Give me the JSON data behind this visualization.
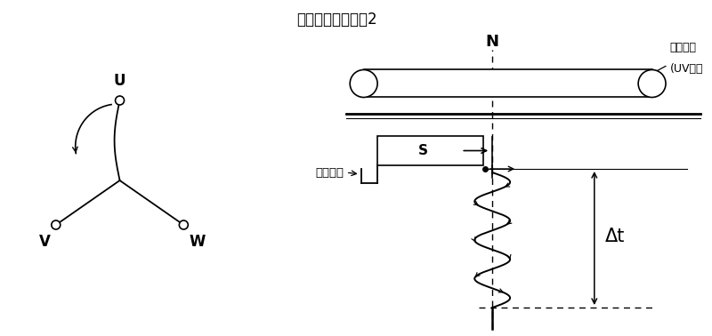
{
  "title": "同步化方法的原理2",
  "bg_color": "#ffffff",
  "fg_color": "#000000",
  "title_fontsize": 12,
  "label_U": "U",
  "label_V": "V",
  "label_W": "W",
  "label_N": "N",
  "label_S": "S",
  "label_delta_t": "Δt",
  "label_rotor": "转子磁极",
  "label_coil_line1": "二相线圈",
  "label_coil_line2": "(UV间）"
}
